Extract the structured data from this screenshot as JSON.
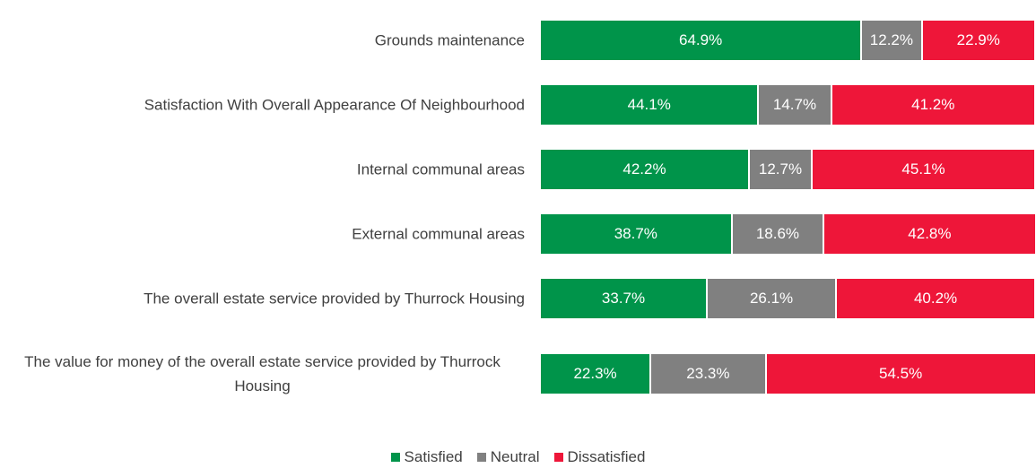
{
  "chart_data": {
    "type": "stacked-bar-horizontal",
    "categories": [
      "Grounds maintenance",
      "Satisfaction With Overall Appearance Of Neighbourhood",
      "Internal communal areas",
      "External communal areas",
      "The overall estate service provided by Thurrock Housing",
      "The value for money of the overall estate service provided by Thurrock Housing"
    ],
    "series": [
      {
        "name": "Satisfied",
        "color": "#00944a",
        "values": [
          64.9,
          44.1,
          42.2,
          38.7,
          33.7,
          22.3
        ],
        "value_labels": [
          "64.9%",
          "44.1%",
          "42.2%",
          "38.7%",
          "33.7%",
          "22.3%"
        ]
      },
      {
        "name": "Neutral",
        "color": "#808080",
        "values": [
          12.2,
          14.7,
          12.7,
          18.6,
          26.1,
          23.3
        ],
        "value_labels": [
          "12.2%",
          "14.7%",
          "12.7%",
          "18.6%",
          "26.1%",
          "23.3%"
        ]
      },
      {
        "name": "Dissatisfied",
        "color": "#ee1639",
        "values": [
          22.9,
          41.2,
          45.1,
          42.8,
          40.2,
          54.5
        ],
        "value_labels": [
          "22.9%",
          "41.2%",
          "45.1%",
          "42.8%",
          "40.2%",
          "54.5%"
        ]
      }
    ],
    "xlim": [
      0,
      100
    ],
    "legend": "bottom"
  }
}
